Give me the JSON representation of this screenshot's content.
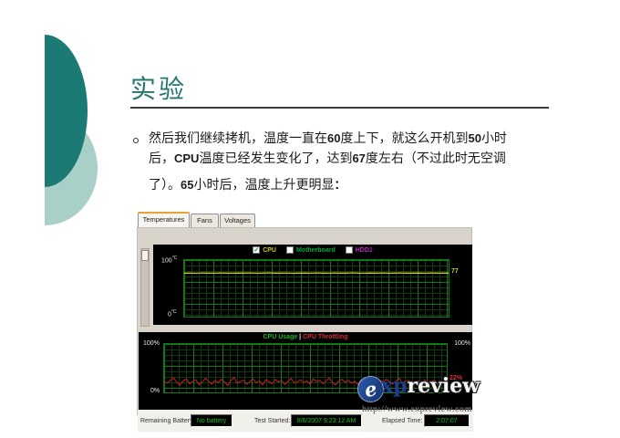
{
  "slide": {
    "title": "实验",
    "accent_dark": "#1b7a74",
    "accent_light": "#a9cfc9",
    "bullet": {
      "lines": [
        {
          "segments": [
            {
              "t": "然后我们继续拷机，温度一直在",
              "b": false
            },
            {
              "t": "60",
              "b": true
            },
            {
              "t": "度上下，就这么开机到",
              "b": false
            },
            {
              "t": "50",
              "b": true
            },
            {
              "t": "小时",
              "b": false
            }
          ]
        },
        {
          "segments": [
            {
              "t": "后，",
              "b": false
            },
            {
              "t": "CPU",
              "b": true
            },
            {
              "t": "温度已经发生变化了，达到",
              "b": false
            },
            {
              "t": "67",
              "b": true
            },
            {
              "t": "度左右（不过此时无空调",
              "b": false
            }
          ]
        },
        {
          "segments": [
            {
              "t": "了）。",
              "b": false
            },
            {
              "t": "65",
              "b": true
            },
            {
              "t": "小时后，温度上升更明显",
              "b": false
            },
            {
              "t": "：",
              "b": true
            }
          ]
        }
      ]
    }
  },
  "monitor": {
    "tabs": [
      {
        "label": "Temperatures",
        "active": true
      },
      {
        "label": "Fans",
        "active": false
      },
      {
        "label": "Voltages",
        "active": false
      }
    ],
    "temp_chart": {
      "legend": [
        {
          "label": "CPU",
          "color": "#c8c832",
          "checked": true
        },
        {
          "label": "Motherboard",
          "color": "#00a83c",
          "checked": false
        },
        {
          "label": "HDD1",
          "color": "#c024c0",
          "checked": false
        }
      ],
      "y_top": "100",
      "y_bottom": "0",
      "y_unit": "°C",
      "current_label": "77"
    },
    "usage_chart": {
      "title_left": "CPU Usage",
      "title_sep": " | ",
      "title_right": "CPU Throttling",
      "title_left_color": "#1db31d",
      "title_right_color": "#d32f2f",
      "y_left_top": "100%",
      "y_right_top": "100%",
      "y_bottom": "0%",
      "current_label": "22%"
    },
    "status": {
      "battery_label": "Remaining Battery:",
      "battery_value": "No battery",
      "started_label": "Test Started:",
      "started_value": "8/6/2007 9:23:12 AM",
      "elapsed_label": "Elapsed Time:",
      "elapsed_value": "2:07:07"
    }
  },
  "watermark": {
    "logo_glyph": "e",
    "brand_xp": "xp",
    "brand_review": "review",
    "url": "http://www.expreview.com"
  },
  "chart_data": [
    {
      "type": "line",
      "title": "Temperatures",
      "ylabel": "°C",
      "ylim": [
        0,
        100
      ],
      "grid": true,
      "legend_position": "top",
      "series": [
        {
          "name": "CPU",
          "color": "#c8c832",
          "checked": true,
          "current": 77,
          "values": [
            77,
            77,
            76.6,
            77.2,
            77,
            76.8,
            77.3,
            77,
            76.7,
            77.1,
            77,
            77.2,
            76.8,
            77,
            77.4,
            76.9,
            77,
            77.2,
            76.6,
            77,
            77.1,
            76.8,
            77.3,
            77,
            76.7,
            77.2,
            77,
            76.9,
            77.4,
            77,
            76.8,
            77.1,
            77,
            77.2,
            76.7,
            77,
            77.3,
            76.9,
            77,
            77.1,
            76.8,
            77.2,
            77,
            76.9,
            77
          ]
        },
        {
          "name": "Motherboard",
          "color": "#00a83c",
          "checked": false,
          "values": []
        },
        {
          "name": "HDD1",
          "color": "#c024c0",
          "checked": false,
          "values": []
        }
      ]
    },
    {
      "type": "line",
      "title": "CPU Usage | CPU Throttling",
      "ylabel": "%",
      "ylim": [
        0,
        100
      ],
      "grid": true,
      "series": [
        {
          "name": "CPU Usage",
          "color": "#cc2020",
          "current": 22,
          "values": [
            22,
            19,
            25,
            30,
            21,
            15,
            24,
            28,
            18,
            22,
            26,
            16,
            21,
            29,
            23,
            17,
            25,
            20,
            27,
            22,
            14,
            24,
            31,
            19,
            23,
            25,
            17,
            22,
            28,
            20,
            24,
            15,
            26,
            22,
            18,
            27,
            21,
            25,
            16,
            23,
            29,
            19,
            22,
            26,
            20,
            24,
            17,
            28,
            22,
            25,
            18,
            23,
            30,
            20,
            15,
            24,
            27,
            21,
            25,
            19,
            23,
            16,
            26,
            22,
            28,
            20,
            24,
            18,
            25,
            21,
            27,
            22,
            17,
            24,
            29,
            20,
            23,
            25,
            19,
            22,
            24,
            18,
            26,
            21,
            23,
            25,
            17,
            24,
            20,
            22
          ]
        }
      ]
    }
  ]
}
